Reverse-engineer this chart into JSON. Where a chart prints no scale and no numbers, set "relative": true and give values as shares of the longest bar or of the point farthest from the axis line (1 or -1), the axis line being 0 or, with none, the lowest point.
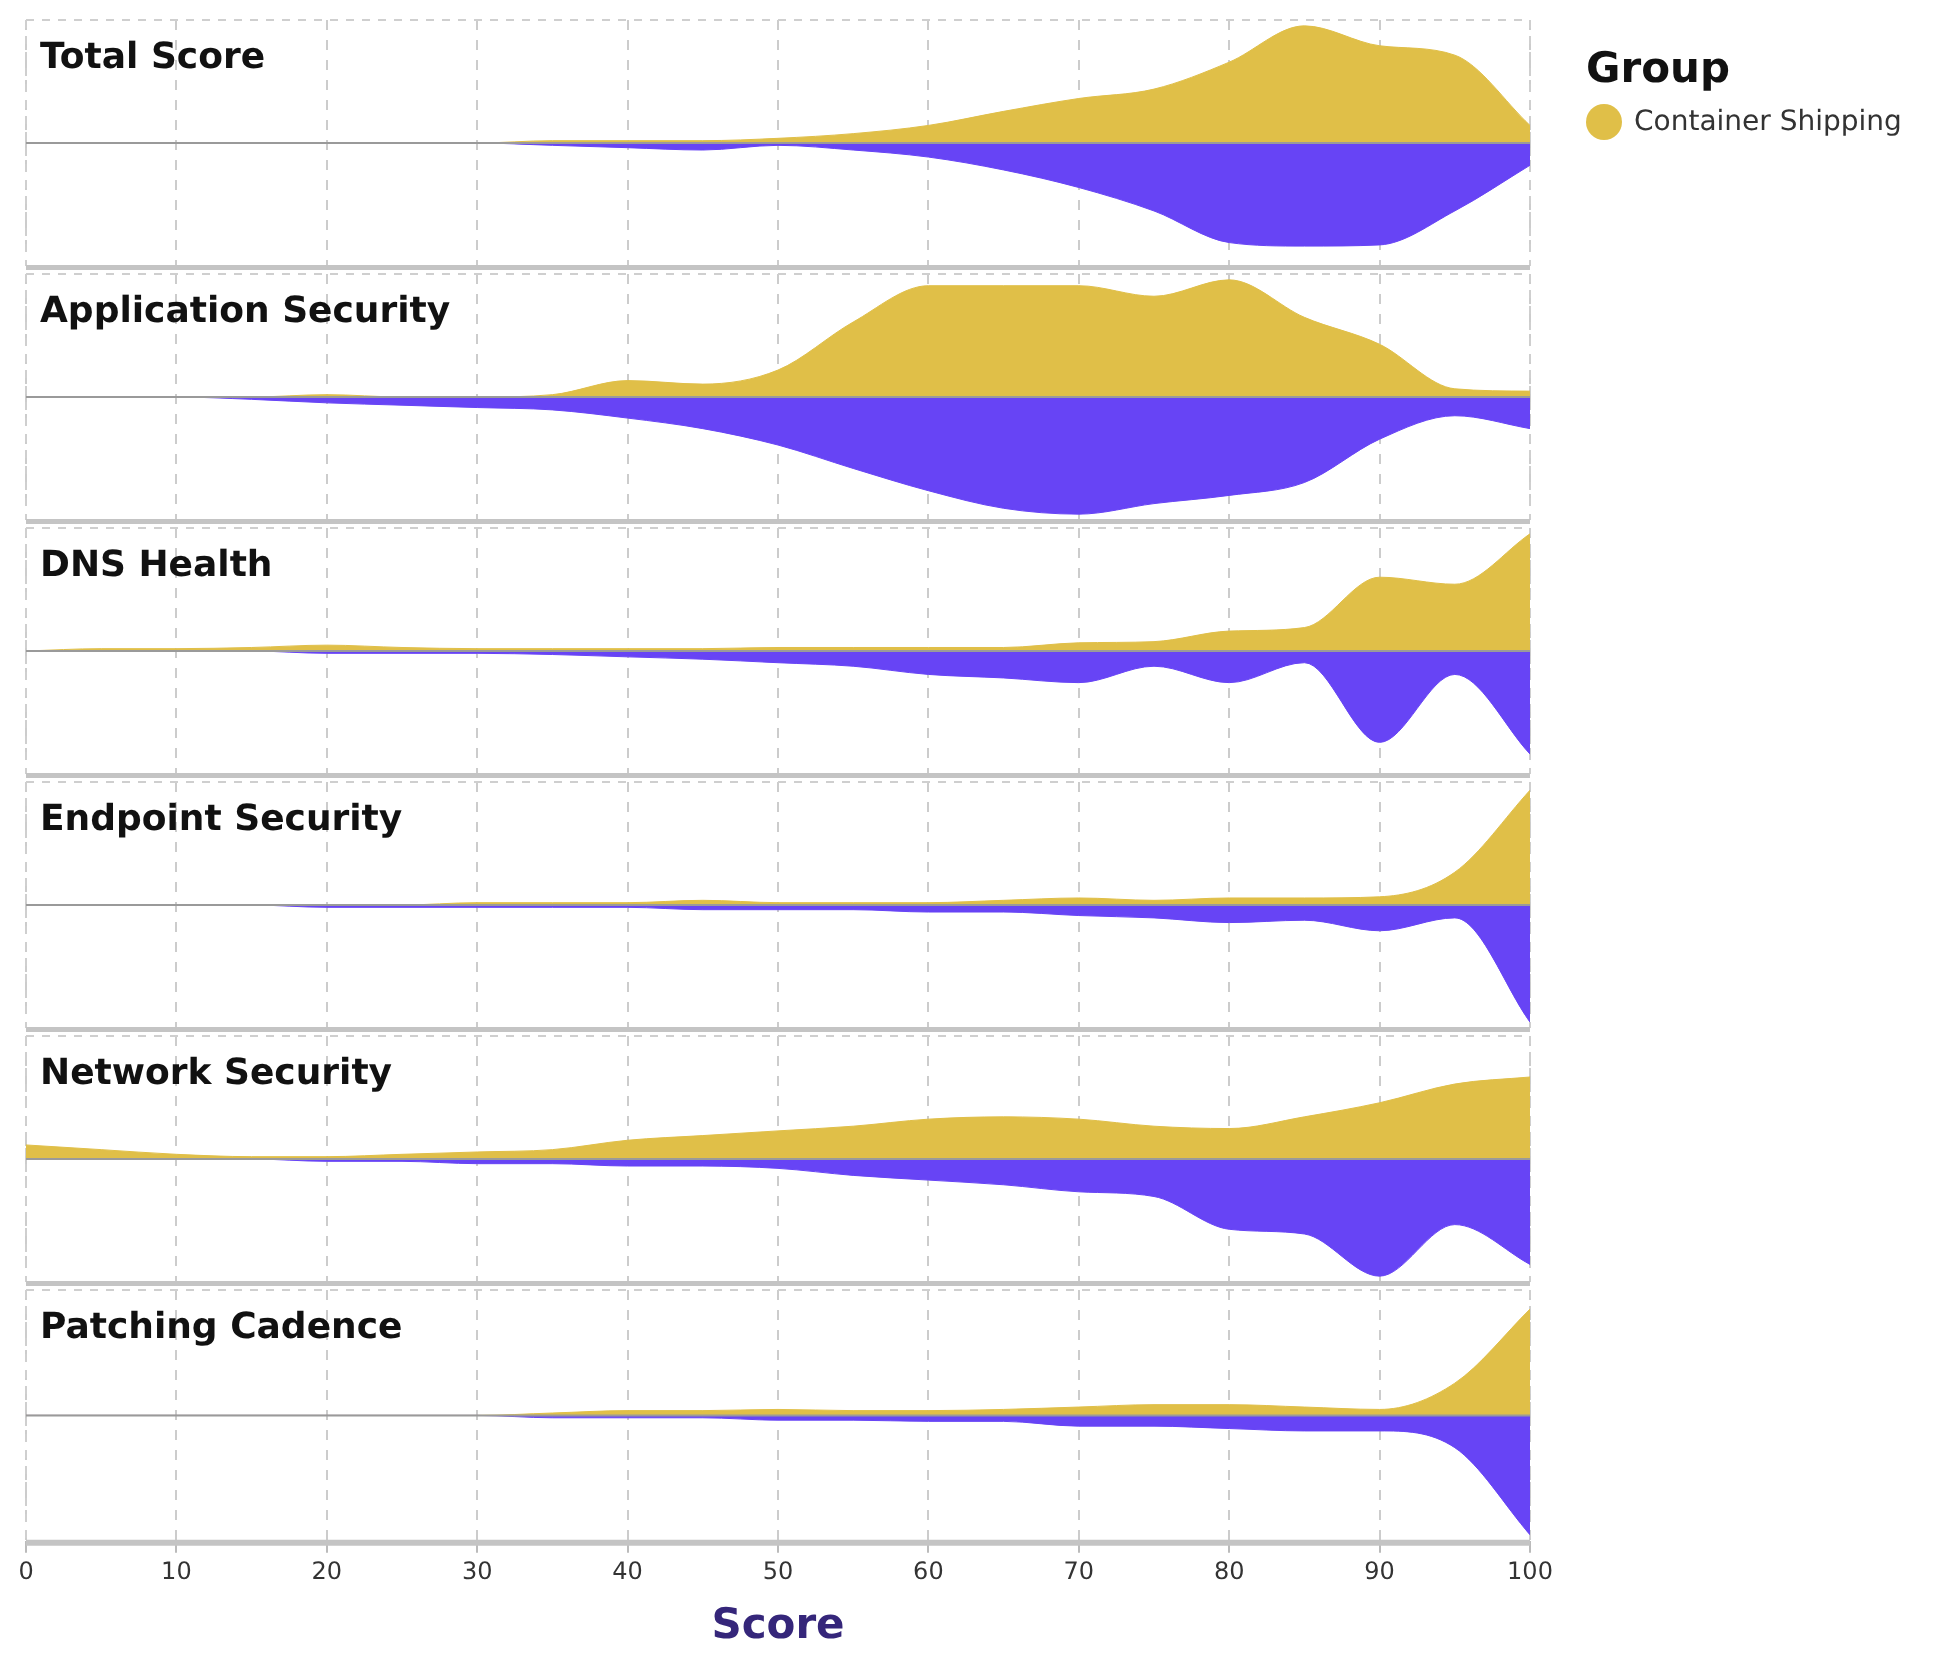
{
  "chart_data": [
    {
      "type": "area",
      "title": "Total Score",
      "relative": true,
      "legend": "right",
      "legend_title": "Group",
      "grid": "x",
      "tick_labels": false,
      "xlim": [
        0,
        100
      ],
      "xticks": [
        0,
        10,
        20,
        30,
        40,
        50,
        60,
        70,
        80,
        90,
        100
      ],
      "x": [
        0,
        5,
        10,
        15,
        20,
        25,
        30,
        35,
        40,
        45,
        50,
        55,
        60,
        65,
        70,
        75,
        80,
        85,
        90,
        95,
        100
      ],
      "series": [
        {
          "name": "Container Shipping",
          "color": "#e0bf48",
          "values": [
            0,
            0,
            0,
            0,
            0,
            0,
            0,
            0.02,
            0.02,
            0.02,
            0.04,
            0.08,
            0.15,
            0.27,
            0.38,
            0.46,
            0.69,
            1,
            0.83,
            0.75,
            0.15
          ]
        },
        {
          "color": "#6744f5",
          "values": [
            0,
            0,
            0,
            0,
            0,
            0,
            0,
            -0.02,
            -0.04,
            -0.06,
            -0.02,
            -0.06,
            -0.12,
            -0.23,
            -0.38,
            -0.58,
            -0.85,
            -0.88,
            -0.87,
            -0.58,
            -0.19
          ]
        }
      ]
    },
    {
      "type": "area",
      "title": "Application Security",
      "relative": true,
      "grid": "x",
      "tick_labels": false,
      "xlim": [
        0,
        100
      ],
      "xticks": [
        0,
        10,
        20,
        30,
        40,
        50,
        60,
        70,
        80,
        90,
        100
      ],
      "x": [
        0,
        5,
        10,
        15,
        20,
        25,
        30,
        35,
        40,
        45,
        50,
        55,
        60,
        65,
        70,
        75,
        80,
        85,
        90,
        95,
        100
      ],
      "series": [
        {
          "name": "Container Shipping",
          "color": "#e0bf48",
          "values": [
            0,
            0,
            0,
            0,
            0.02,
            0,
            0,
            0.02,
            0.14,
            0.11,
            0.23,
            0.64,
            0.95,
            0.95,
            0.95,
            0.86,
            1,
            0.68,
            0.45,
            0.07,
            0.05
          ]
        },
        {
          "color": "#6744f5",
          "values": [
            0,
            0,
            0,
            -0.02,
            -0.05,
            -0.07,
            -0.09,
            -0.11,
            -0.18,
            -0.27,
            -0.41,
            -0.61,
            -0.8,
            -0.95,
            -1,
            -0.91,
            -0.84,
            -0.73,
            -0.36,
            -0.16,
            -0.27
          ]
        }
      ]
    },
    {
      "type": "area",
      "title": "DNS Health",
      "relative": true,
      "grid": "x",
      "tick_labels": false,
      "xlim": [
        0,
        100
      ],
      "xticks": [
        0,
        10,
        20,
        30,
        40,
        50,
        60,
        70,
        80,
        90,
        100
      ],
      "x": [
        0,
        5,
        10,
        15,
        20,
        25,
        30,
        35,
        40,
        45,
        50,
        55,
        60,
        65,
        70,
        75,
        80,
        85,
        90,
        95,
        100
      ],
      "series": [
        {
          "name": "Container Shipping",
          "color": "#e0bf48",
          "values": [
            0,
            0.02,
            0.02,
            0.03,
            0.05,
            0.03,
            0.02,
            0.02,
            0.02,
            0.02,
            0.03,
            0.03,
            0.03,
            0.03,
            0.07,
            0.08,
            0.17,
            0.2,
            0.63,
            0.57,
            1
          ]
        },
        {
          "color": "#6744f5",
          "values": [
            0,
            0,
            0,
            0,
            -0.02,
            -0.02,
            -0.02,
            -0.03,
            -0.05,
            -0.07,
            -0.1,
            -0.13,
            -0.2,
            -0.23,
            -0.27,
            -0.13,
            -0.27,
            -0.1,
            -0.78,
            -0.2,
            -0.88
          ]
        }
      ]
    },
    {
      "type": "area",
      "title": "Endpoint Security",
      "relative": true,
      "grid": "x",
      "tick_labels": false,
      "xlim": [
        0,
        100
      ],
      "xticks": [
        0,
        10,
        20,
        30,
        40,
        50,
        60,
        70,
        80,
        90,
        100
      ],
      "x": [
        0,
        5,
        10,
        15,
        20,
        25,
        30,
        35,
        40,
        45,
        50,
        55,
        60,
        65,
        70,
        75,
        80,
        85,
        90,
        95,
        100
      ],
      "series": [
        {
          "name": "Container Shipping",
          "color": "#e0bf48",
          "values": [
            0,
            0,
            0,
            0,
            0,
            0,
            0.02,
            0.02,
            0.02,
            0.04,
            0.02,
            0.02,
            0.02,
            0.04,
            0.06,
            0.04,
            0.06,
            0.06,
            0.07,
            0.28,
            0.98
          ]
        },
        {
          "color": "#6744f5",
          "values": [
            0,
            0,
            0,
            0,
            -0.02,
            -0.02,
            -0.02,
            -0.02,
            -0.02,
            -0.04,
            -0.04,
            -0.04,
            -0.06,
            -0.06,
            -0.09,
            -0.11,
            -0.15,
            -0.13,
            -0.22,
            -0.11,
            -1
          ]
        }
      ]
    },
    {
      "type": "area",
      "title": "Network Security",
      "relative": true,
      "grid": "x",
      "tick_labels": false,
      "xlim": [
        0,
        100
      ],
      "xticks": [
        0,
        10,
        20,
        30,
        40,
        50,
        60,
        70,
        80,
        90,
        100
      ],
      "x": [
        0,
        5,
        10,
        15,
        20,
        25,
        30,
        35,
        40,
        45,
        50,
        55,
        60,
        65,
        70,
        75,
        80,
        85,
        90,
        95,
        100
      ],
      "series": [
        {
          "name": "Container Shipping",
          "color": "#e0bf48",
          "values": [
            0.12,
            0.08,
            0.04,
            0.02,
            0.02,
            0.04,
            0.06,
            0.08,
            0.16,
            0.2,
            0.24,
            0.28,
            0.34,
            0.36,
            0.34,
            0.28,
            0.26,
            0.36,
            0.48,
            0.64,
            0.7
          ]
        },
        {
          "color": "#6744f5",
          "values": [
            0,
            0,
            0,
            0,
            -0.02,
            -0.02,
            -0.04,
            -0.04,
            -0.06,
            -0.06,
            -0.08,
            -0.14,
            -0.18,
            -0.22,
            -0.28,
            -0.32,
            -0.6,
            -0.64,
            -1,
            -0.56,
            -0.9
          ]
        }
      ]
    },
    {
      "type": "area",
      "title": "Patching Cadence",
      "relative": true,
      "grid": "x",
      "tick_labels": "x",
      "xlabel": "Score",
      "xlim": [
        0,
        100
      ],
      "xticks": [
        0,
        10,
        20,
        30,
        40,
        50,
        60,
        70,
        80,
        90,
        100
      ],
      "x": [
        0,
        5,
        10,
        15,
        20,
        25,
        30,
        35,
        40,
        45,
        50,
        55,
        60,
        65,
        70,
        75,
        80,
        85,
        90,
        95,
        100
      ],
      "series": [
        {
          "name": "Container Shipping",
          "color": "#e0bf48",
          "values": [
            0,
            0,
            0,
            0,
            0,
            0,
            0,
            0.02,
            0.04,
            0.04,
            0.05,
            0.04,
            0.04,
            0.05,
            0.07,
            0.09,
            0.09,
            0.07,
            0.05,
            0.27,
            0.89
          ]
        },
        {
          "color": "#6744f5",
          "values": [
            0,
            0,
            0,
            0,
            0,
            0,
            0,
            -0.02,
            -0.02,
            -0.02,
            -0.04,
            -0.04,
            -0.05,
            -0.05,
            -0.09,
            -0.09,
            -0.11,
            -0.13,
            -0.13,
            -0.27,
            -1
          ]
        }
      ]
    }
  ]
}
